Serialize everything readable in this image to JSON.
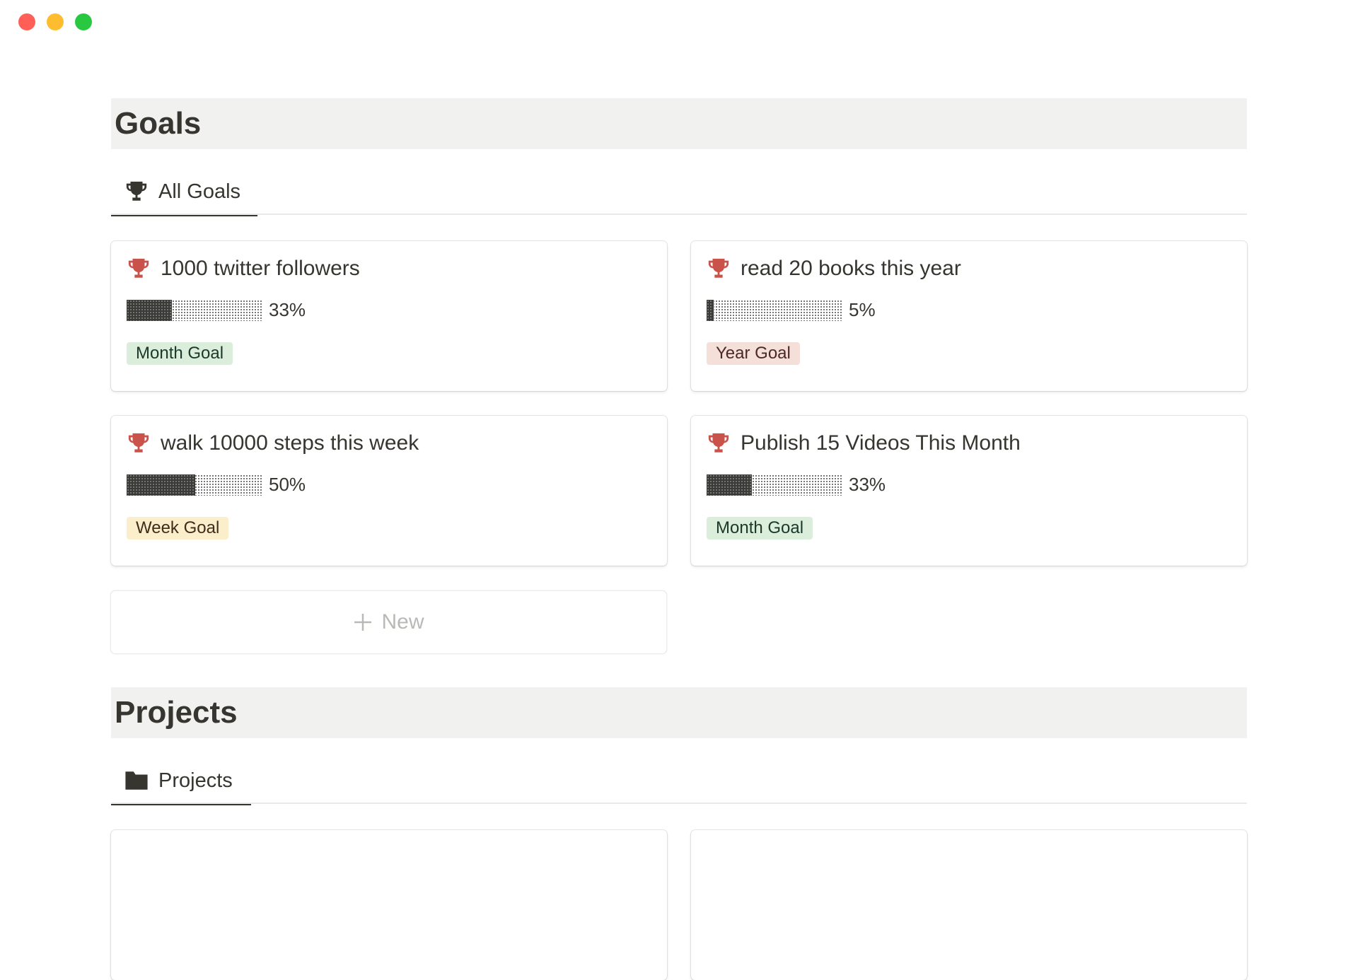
{
  "window": {
    "controls": [
      {
        "name": "close",
        "color": "#ff5f57"
      },
      {
        "name": "minimize",
        "color": "#febc2e"
      },
      {
        "name": "zoom",
        "color": "#28c840"
      }
    ]
  },
  "goals": {
    "title": "Goals",
    "tab": {
      "label": "All Goals",
      "icon": "trophy-icon"
    },
    "cards": [
      {
        "title": "1000 twitter followers",
        "progress": 33,
        "progress_label": "33%",
        "tag": "Month Goal",
        "tag_bg": "#dbeddb",
        "tag_color": "#1c3829"
      },
      {
        "title": "read 20 books this year",
        "progress": 5,
        "progress_label": "5%",
        "tag": "Year Goal",
        "tag_bg": "#f4dfd9",
        "tag_color": "#4a2a22"
      },
      {
        "title": "walk 10000 steps this week",
        "progress": 50,
        "progress_label": "50%",
        "tag": "Week Goal",
        "tag_bg": "#fbeecb",
        "tag_color": "#402c1b"
      },
      {
        "title": "Publish 15 Videos This Month",
        "progress": 33,
        "progress_label": "33%",
        "tag": "Month Goal",
        "tag_bg": "#dbeddb",
        "tag_color": "#1c3829"
      }
    ],
    "new_label": "New"
  },
  "projects": {
    "title": "Projects",
    "tab": {
      "label": "Projects",
      "icon": "folder-icon"
    }
  },
  "colors": {
    "trophy": "#c9534a",
    "text": "#37352f"
  }
}
